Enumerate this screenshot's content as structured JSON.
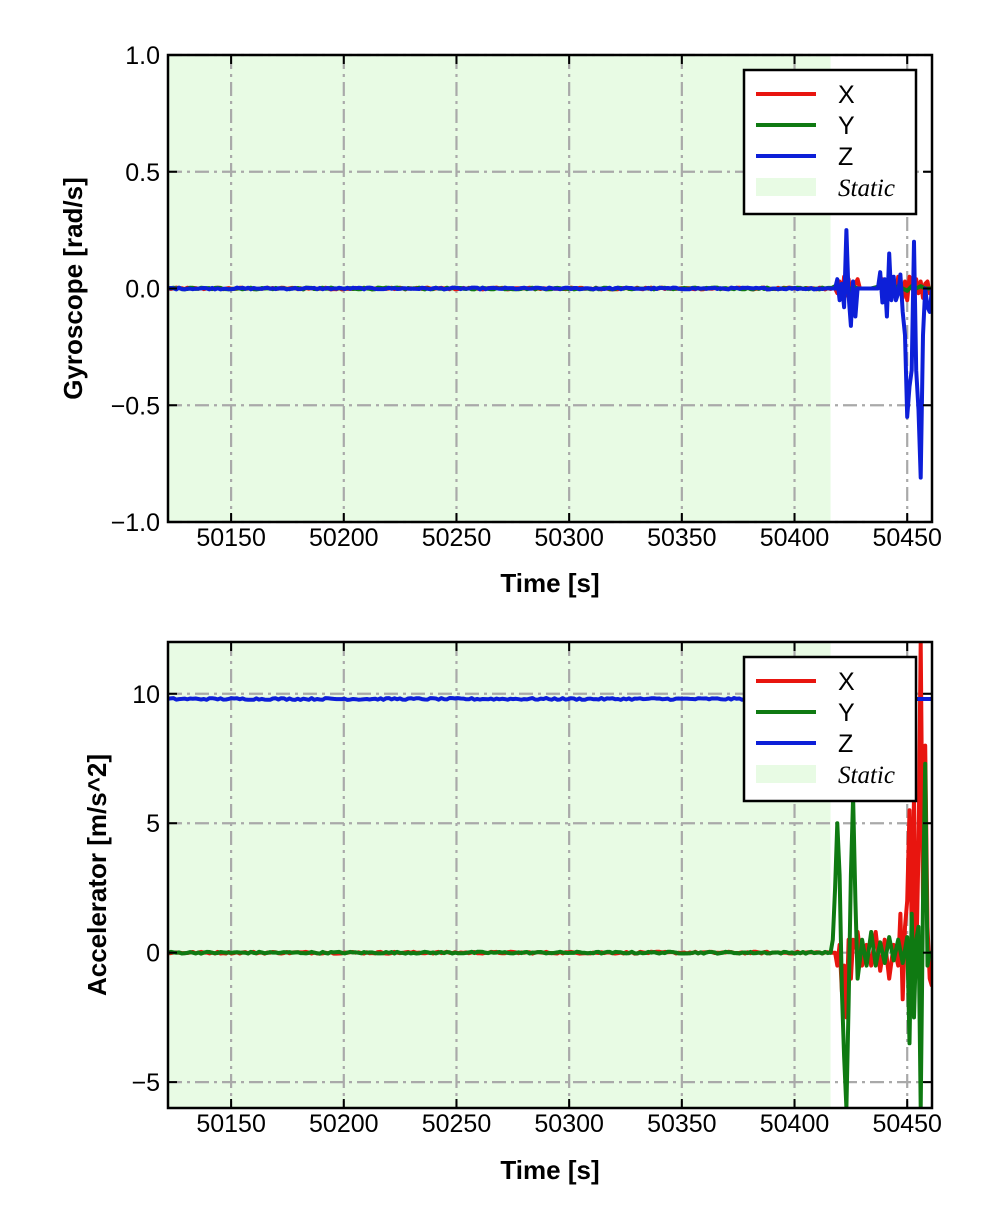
{
  "chart_data": [
    {
      "type": "line",
      "title": "",
      "xlabel": "Time [s]",
      "ylabel": "Gyroscope [rad/s]",
      "xlim": [
        50122,
        50461
      ],
      "ylim": [
        -1.0,
        1.0
      ],
      "x_ticks": [
        50150,
        50200,
        50250,
        50300,
        50350,
        50400,
        50450
      ],
      "x_tick_labels": [
        "50150",
        "50200",
        "50250",
        "50300",
        "50350",
        "50400",
        "50450"
      ],
      "y_ticks": [
        -1.0,
        -0.5,
        0.0,
        0.5,
        1.0
      ],
      "y_tick_labels": [
        "−1.0",
        "−0.5",
        "0.0",
        "0.5",
        "1.0"
      ],
      "grid": true,
      "legend_position": "top-right",
      "static_region": {
        "label": "Static",
        "x_start": 50122,
        "x_end": 50416,
        "color": "#e8fbe4"
      },
      "series": [
        {
          "name": "X",
          "color": "#e8150f",
          "baseline": 0.0,
          "x": [
            50416,
            50418,
            50419,
            50420,
            50421,
            50422,
            50423,
            50424,
            50425,
            50426,
            50427,
            50428,
            50429,
            50430,
            50432,
            50434,
            50436,
            50438,
            50439,
            50440,
            50441,
            50442,
            50443,
            50444,
            50445,
            50446,
            50447,
            50448,
            50449,
            50450,
            50451,
            50452,
            50453,
            50454,
            50455,
            50456,
            50457,
            50458,
            50459,
            50460,
            50461
          ],
          "values": [
            0.0,
            0.0,
            -0.02,
            0.03,
            -0.04,
            0.05,
            -0.03,
            0.04,
            -0.05,
            0.03,
            0.02,
            0.04,
            0.0,
            0.0,
            0.0,
            0.0,
            0.0,
            0.02,
            0.04,
            -0.03,
            0.03,
            -0.04,
            0.05,
            0.02,
            -0.03,
            0.05,
            0.04,
            -0.04,
            0.03,
            -0.05,
            0.05,
            0.03,
            -0.03,
            0.04,
            -0.02,
            0.03,
            -0.04,
            0.02,
            0.03,
            -0.02,
            0.0
          ]
        },
        {
          "name": "Y",
          "color": "#0f7a12",
          "baseline": 0.0,
          "x": [
            50416,
            50418,
            50420,
            50422,
            50424,
            50426,
            50428,
            50430,
            50434,
            50438,
            50442,
            50446,
            50450,
            50452,
            50454,
            50456,
            50458,
            50460,
            50461
          ],
          "values": [
            0.0,
            0.01,
            -0.01,
            0.02,
            -0.02,
            0.01,
            0.0,
            0.0,
            0.0,
            0.01,
            -0.01,
            0.01,
            -0.01,
            0.01,
            0.0,
            0.01,
            0.0,
            0.0,
            0.0
          ]
        },
        {
          "name": "Z",
          "color": "#0d1fd8",
          "baseline": 0.0,
          "x": [
            50416,
            50418,
            50419,
            50420,
            50421,
            50422,
            50423,
            50424,
            50425,
            50426,
            50427,
            50428,
            50429,
            50430,
            50434,
            50437,
            50438,
            50439,
            50440,
            50441,
            50442,
            50443,
            50444,
            50445,
            50446,
            50447,
            50448,
            50449,
            50450,
            50451,
            50452,
            50453,
            50454,
            50455,
            50456,
            50457,
            50458,
            50459,
            50460,
            50461
          ],
          "values": [
            0.0,
            0.0,
            0.04,
            -0.05,
            0.02,
            -0.08,
            0.25,
            -0.03,
            -0.16,
            0.03,
            -0.12,
            0.0,
            0.0,
            0.0,
            0.0,
            0.0,
            0.07,
            -0.06,
            0.04,
            -0.12,
            0.15,
            -0.05,
            0.05,
            -0.05,
            -0.02,
            0.06,
            -0.1,
            -0.2,
            -0.55,
            -0.42,
            -0.35,
            0.2,
            -0.35,
            -0.52,
            -0.81,
            -0.2,
            0.0,
            -0.08,
            -0.1,
            0.0
          ]
        }
      ]
    },
    {
      "type": "line",
      "title": "",
      "xlabel": "Time [s]",
      "ylabel": "Accelerator [m/s^2]",
      "xlim": [
        50122,
        50461
      ],
      "ylim": [
        -6.0,
        12.0
      ],
      "x_ticks": [
        50150,
        50200,
        50250,
        50300,
        50350,
        50400,
        50450
      ],
      "x_tick_labels": [
        "50150",
        "50200",
        "50250",
        "50300",
        "50350",
        "50400",
        "50450"
      ],
      "y_ticks": [
        -5,
        0,
        5,
        10
      ],
      "y_tick_labels": [
        "−5",
        "0",
        "5",
        "10"
      ],
      "grid": true,
      "legend_position": "top-right",
      "static_region": {
        "label": "Static",
        "x_start": 50122,
        "x_end": 50416,
        "color": "#e8fbe4"
      },
      "series": [
        {
          "name": "X",
          "color": "#e8150f",
          "baseline": 0.0,
          "x": [
            50416,
            50418,
            50419,
            50420,
            50421,
            50422,
            50423,
            50424,
            50425,
            50426,
            50427,
            50428,
            50430,
            50432,
            50434,
            50436,
            50438,
            50440,
            50442,
            50444,
            50446,
            50447,
            50448,
            50449,
            50450,
            50451,
            50452,
            50453,
            50454,
            50455,
            50456,
            50457,
            50458,
            50459,
            50460,
            50461
          ],
          "values": [
            0.0,
            0.0,
            -0.5,
            0.3,
            -1.5,
            -0.5,
            -2.5,
            0.5,
            -1.0,
            0.5,
            0.2,
            0.8,
            -0.5,
            0.3,
            -0.5,
            0.8,
            -0.7,
            0.5,
            -1.0,
            0.3,
            -0.5,
            1.5,
            -1.8,
            1.0,
            2.0,
            5.5,
            1.0,
            6.0,
            -0.5,
            4.0,
            12.0,
            2.0,
            8.0,
            1.0,
            -1.0,
            -1.3
          ]
        },
        {
          "name": "Y",
          "color": "#0f7a12",
          "baseline": 0.0,
          "x": [
            50416,
            50417,
            50418,
            50419,
            50420,
            50421,
            50422,
            50423,
            50424,
            50425,
            50426,
            50427,
            50428,
            50429,
            50430,
            50432,
            50434,
            50436,
            50438,
            50440,
            50442,
            50444,
            50446,
            50448,
            50450,
            50451,
            50452,
            50453,
            50454,
            50455,
            50456,
            50457,
            50458,
            50459,
            50460,
            50461
          ],
          "values": [
            0.0,
            0.5,
            2.5,
            5.0,
            3.0,
            -1.5,
            -4.0,
            -6.0,
            -2.0,
            3.0,
            6.0,
            2.0,
            -1.0,
            -0.3,
            0.5,
            -0.5,
            0.8,
            -0.5,
            0.4,
            -0.4,
            0.6,
            -0.3,
            0.5,
            -0.4,
            0.6,
            -3.5,
            1.5,
            -2.5,
            0.5,
            1.0,
            -6.0,
            2.0,
            7.3,
            -0.5,
            0.0,
            0.0
          ]
        },
        {
          "name": "Z",
          "color": "#0d1fd8",
          "baseline": 9.8,
          "x": [
            50416,
            50418,
            50420,
            50422,
            50424,
            50426,
            50428,
            50430,
            50434,
            50438,
            50442,
            50446,
            50450,
            50452,
            50454,
            50456,
            50458,
            50460,
            50461
          ],
          "values": [
            9.8,
            9.8,
            9.8,
            9.8,
            9.8,
            9.8,
            9.8,
            9.8,
            9.8,
            9.8,
            9.8,
            9.8,
            9.8,
            9.8,
            9.8,
            9.8,
            9.8,
            9.8,
            9.8
          ]
        }
      ]
    }
  ]
}
